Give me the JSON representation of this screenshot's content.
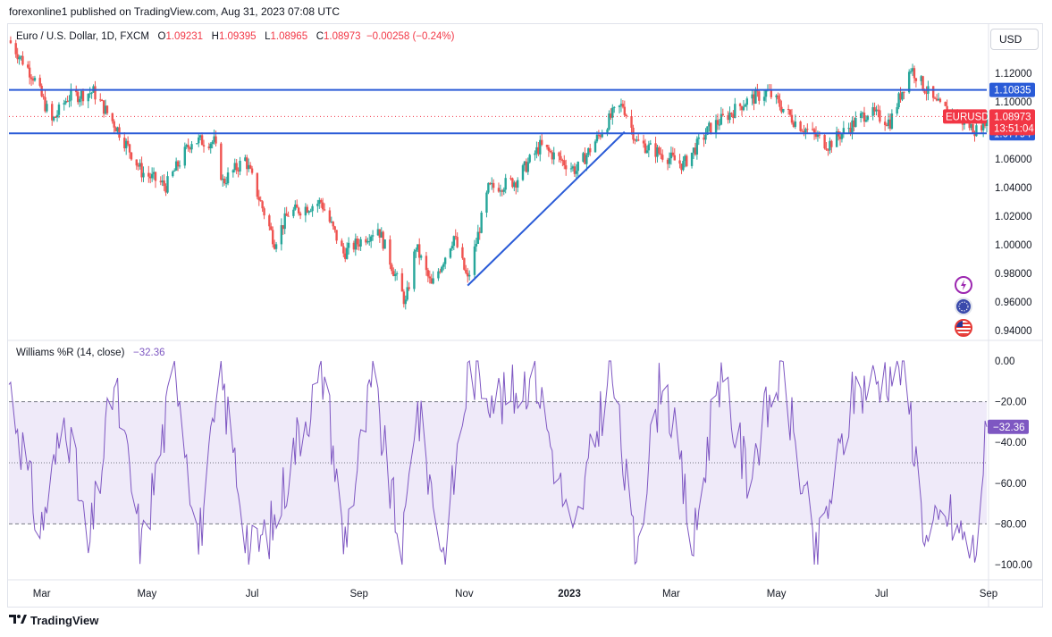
{
  "header": "forexonline1 published on TradingView.com, Aug 31, 2023 07:08 UTC",
  "legend": {
    "symbol": "Euro / U.S. Dollar, 1D, FXCM",
    "open_label": "O",
    "open": "1.09231",
    "high_label": "H",
    "high": "1.09395",
    "low_label": "L",
    "low": "1.08965",
    "close_label": "C",
    "close": "1.08973",
    "change": "−0.00258 (−0.24%)"
  },
  "currency_button": "USD",
  "price_axis": {
    "ticks": [
      "1.12000",
      "1.10000",
      "1.06000",
      "1.04000",
      "1.02000",
      "1.00000",
      "0.98000",
      "0.96000",
      "0.94000"
    ],
    "resistance_label": "1.10835",
    "support_label": "1.07794",
    "symbol_tag": "EURUSD",
    "last_price": "1.08973",
    "countdown": "13:51:04"
  },
  "indicator": {
    "name": "Williams %R (14, close)",
    "value": "−32.36",
    "ticks": [
      "0.00",
      "−20.00",
      "−40.00",
      "−60.00",
      "−80.00",
      "−100.00"
    ],
    "value_tag": "−32.36"
  },
  "time_axis": [
    "Mar",
    "May",
    "Jul",
    "Sep",
    "Nov",
    "2023",
    "Mar",
    "May",
    "Jul",
    "Sep"
  ],
  "footer_brand": "TradingView",
  "colors": {
    "up": "#26a69a",
    "down": "#ef5350",
    "level_line": "#2a5bd7",
    "wr_line": "#7e57c2",
    "wr_band": "#efeaf9",
    "last_price": "#f23645"
  },
  "chart_data": [
    {
      "type": "candlestick",
      "title": "Euro / U.S. Dollar, 1D, FXCM",
      "x_range": [
        "2022-02-10",
        "2023-08-31"
      ],
      "ylim": [
        0.935,
        1.135
      ],
      "horizontal_levels": [
        1.10835,
        1.07794
      ],
      "trendline": {
        "from": [
          "2022-11-03",
          0.9715
        ],
        "to": [
          "2023-02-02",
          1.079
        ]
      },
      "close_series": {
        "dates": [
          "2022-02-10",
          "2022-02-24",
          "2022-03-07",
          "2022-03-16",
          "2022-03-31",
          "2022-04-14",
          "2022-04-28",
          "2022-05-12",
          "2022-05-27",
          "2022-06-09",
          "2022-06-14",
          "2022-06-27",
          "2022-07-14",
          "2022-07-22",
          "2022-08-10",
          "2022-08-23",
          "2022-09-12",
          "2022-09-28",
          "2022-10-04",
          "2022-10-13",
          "2022-10-26",
          "2022-11-03",
          "2022-11-15",
          "2022-12-01",
          "2022-12-15",
          "2023-01-05",
          "2023-01-26",
          "2023-02-01",
          "2023-02-09",
          "2023-03-08",
          "2023-03-23",
          "2023-04-13",
          "2023-04-26",
          "2023-05-12",
          "2023-05-31",
          "2023-06-23",
          "2023-07-06",
          "2023-07-18",
          "2023-08-01",
          "2023-08-25",
          "2023-08-31"
        ],
        "close": [
          1.143,
          1.118,
          1.086,
          1.103,
          1.107,
          1.081,
          1.051,
          1.041,
          1.073,
          1.072,
          1.044,
          1.06,
          1.002,
          1.022,
          1.03,
          0.994,
          1.012,
          0.959,
          0.999,
          0.971,
          1.006,
          0.975,
          1.039,
          1.045,
          1.069,
          1.052,
          1.091,
          1.098,
          1.072,
          1.056,
          1.081,
          1.1,
          1.107,
          1.086,
          1.07,
          1.093,
          1.086,
          1.124,
          1.099,
          1.08,
          1.0897
        ]
      }
    },
    {
      "type": "line",
      "title": "Williams %R (14, close)",
      "ylim": [
        -100,
        0
      ],
      "bands": [
        -20,
        -50,
        -80
      ],
      "x": [
        "2022-02-10",
        "2022-02-28",
        "2022-03-15",
        "2022-03-28",
        "2022-04-12",
        "2022-04-28",
        "2022-05-18",
        "2022-05-31",
        "2022-06-13",
        "2022-06-30",
        "2022-07-14",
        "2022-07-28",
        "2022-08-12",
        "2022-08-23",
        "2022-09-09",
        "2022-09-26",
        "2022-10-04",
        "2022-10-20",
        "2022-11-04",
        "2022-11-24",
        "2022-12-12",
        "2023-01-03",
        "2023-01-25",
        "2023-02-08",
        "2023-02-24",
        "2023-03-14",
        "2023-03-28",
        "2023-04-14",
        "2023-05-04",
        "2023-05-24",
        "2023-06-15",
        "2023-06-27",
        "2023-07-14",
        "2023-07-27",
        "2023-08-08",
        "2023-08-24",
        "2023-08-31"
      ],
      "values": [
        -10,
        -85,
        -25,
        -95,
        -10,
        -92,
        -2,
        -90,
        -8,
        -95,
        -80,
        -35,
        -5,
        -90,
        -10,
        -98,
        -20,
        -95,
        -3,
        -20,
        -5,
        -90,
        -2,
        -95,
        -3,
        -92,
        -5,
        -55,
        -3,
        -98,
        -15,
        -10,
        -0.5,
        -90,
        -75,
        -95,
        -32.36
      ]
    }
  ]
}
